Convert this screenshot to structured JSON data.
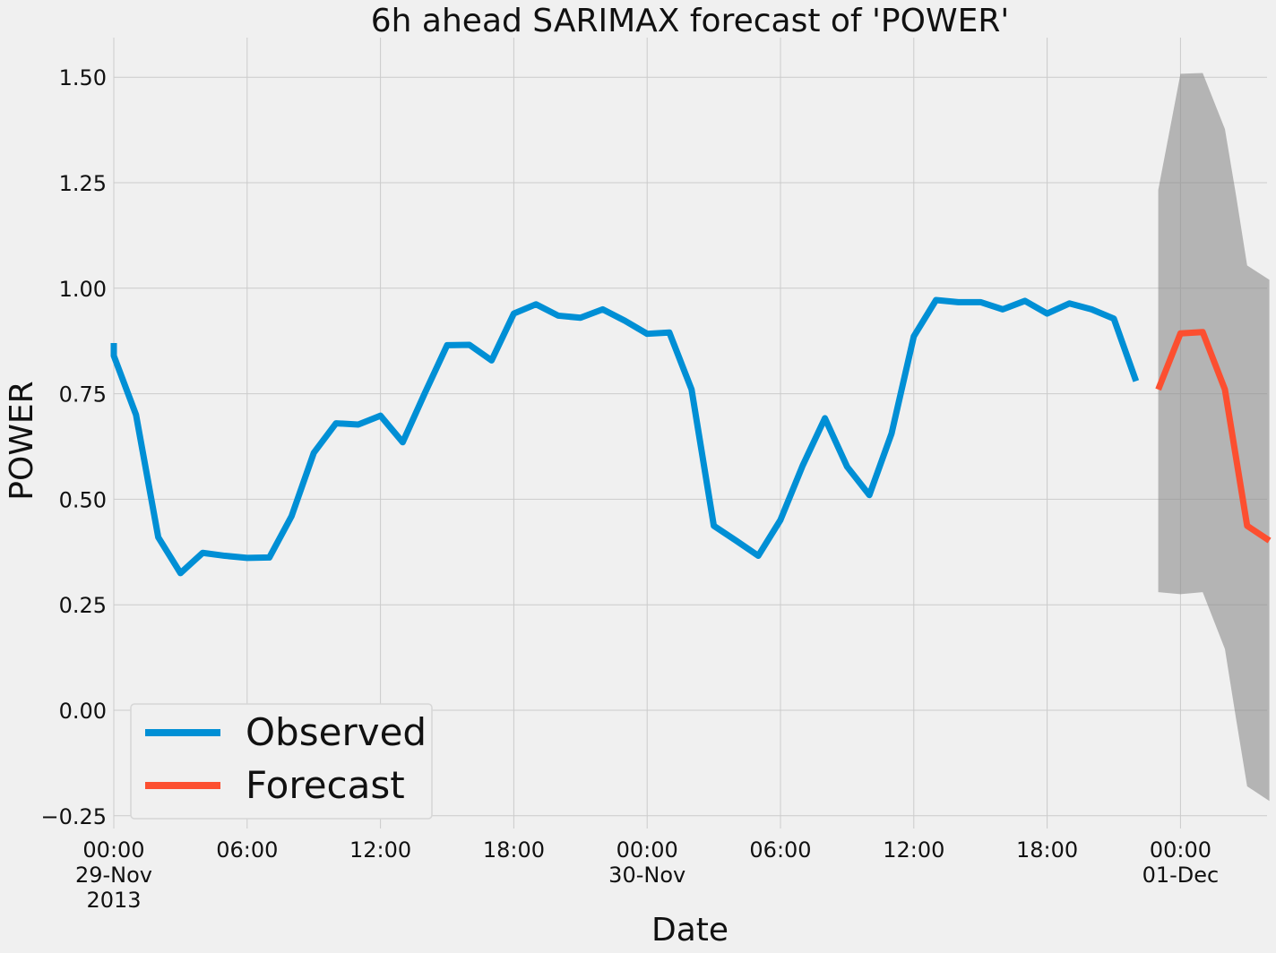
{
  "chart_data": {
    "type": "line",
    "title": "6h ahead SARIMAX forecast of 'POWER'",
    "xlabel": "Date",
    "ylabel": "POWER",
    "x_unit": "hour",
    "x_start": "2013-11-29 00:00",
    "xlim": [
      "2013-11-29 00:00",
      "2013-12-01 04:00"
    ],
    "ylim": [
      -0.28,
      1.6
    ],
    "yticks": [
      -0.25,
      0.0,
      0.25,
      0.5,
      0.75,
      1.0,
      1.25,
      1.5
    ],
    "ytick_labels": [
      "−0.25",
      "0.00",
      "0.25",
      "0.50",
      "0.75",
      "1.00",
      "1.25",
      "1.50"
    ],
    "xticks": [
      {
        "x": "2013-11-29 00:00",
        "lines": [
          "00:00",
          "29-Nov",
          "2013"
        ]
      },
      {
        "x": "2013-11-29 06:00",
        "lines": [
          "06:00"
        ]
      },
      {
        "x": "2013-11-29 12:00",
        "lines": [
          "12:00"
        ]
      },
      {
        "x": "2013-11-29 18:00",
        "lines": [
          "18:00"
        ]
      },
      {
        "x": "2013-11-30 00:00",
        "lines": [
          "00:00",
          "30-Nov"
        ]
      },
      {
        "x": "2013-11-30 06:00",
        "lines": [
          "06:00"
        ]
      },
      {
        "x": "2013-11-30 12:00",
        "lines": [
          "12:00"
        ]
      },
      {
        "x": "2013-11-30 18:00",
        "lines": [
          "18:00"
        ]
      },
      {
        "x": "2013-12-01 00:00",
        "lines": [
          "00:00",
          "01-Dec"
        ]
      }
    ],
    "grid": true,
    "legend": {
      "position": "lower-left"
    },
    "series": [
      {
        "name": "Observed",
        "color": "#008fd5",
        "x": [
          "2013-11-29 00:00",
          "2013-11-29 00:00",
          "2013-11-29 01:00",
          "2013-11-29 02:00",
          "2013-11-29 03:00",
          "2013-11-29 04:00",
          "2013-11-29 05:00",
          "2013-11-29 06:00",
          "2013-11-29 07:00",
          "2013-11-29 08:00",
          "2013-11-29 09:00",
          "2013-11-29 10:00",
          "2013-11-29 11:00",
          "2013-11-29 12:00",
          "2013-11-29 13:00",
          "2013-11-29 14:00",
          "2013-11-29 15:00",
          "2013-11-29 16:00",
          "2013-11-29 17:00",
          "2013-11-29 18:00",
          "2013-11-29 19:00",
          "2013-11-29 20:00",
          "2013-11-29 21:00",
          "2013-11-29 22:00",
          "2013-11-29 23:00",
          "2013-11-30 00:00",
          "2013-11-30 01:00",
          "2013-11-30 02:00",
          "2013-11-30 03:00",
          "2013-11-30 04:00",
          "2013-11-30 05:00",
          "2013-11-30 06:00",
          "2013-11-30 07:00",
          "2013-11-30 08:00",
          "2013-11-30 09:00",
          "2013-11-30 10:00",
          "2013-11-30 11:00",
          "2013-11-30 12:00",
          "2013-11-30 13:00",
          "2013-11-30 14:00",
          "2013-11-30 15:00",
          "2013-11-30 16:00",
          "2013-11-30 17:00",
          "2013-11-30 18:00",
          "2013-11-30 19:00",
          "2013-11-30 20:00",
          "2013-11-30 21:00",
          "2013-11-30 22:00"
        ],
        "values": [
          0.87,
          0.84,
          0.7,
          0.41,
          0.325,
          0.373,
          0.366,
          0.361,
          0.362,
          0.46,
          0.61,
          0.68,
          0.677,
          0.698,
          0.635,
          0.752,
          0.865,
          0.866,
          0.829,
          0.94,
          0.962,
          0.935,
          0.93,
          0.95,
          0.923,
          0.892,
          0.895,
          0.76,
          0.437,
          0.402,
          0.366,
          0.451,
          0.58,
          0.692,
          0.577,
          0.51,
          0.656,
          0.886,
          0.972,
          0.967,
          0.967,
          0.95,
          0.97,
          0.94,
          0.964,
          0.95,
          0.928,
          0.78
        ]
      },
      {
        "name": "Forecast",
        "color": "#fc4f30",
        "x": [
          "2013-11-30 23:00",
          "2013-12-01 00:00",
          "2013-12-01 01:00",
          "2013-12-01 02:00",
          "2013-12-01 03:00",
          "2013-12-01 04:00"
        ],
        "values": [
          0.76,
          0.893,
          0.896,
          0.76,
          0.437,
          0.402
        ]
      }
    ],
    "confidence_band": {
      "color": "#8c8c8c",
      "x": [
        "2013-11-30 23:00",
        "2013-12-01 00:00",
        "2013-12-01 01:00",
        "2013-12-01 02:00",
        "2013-12-01 02:30",
        "2013-12-01 03:00",
        "2013-12-01 04:00"
      ],
      "lower": [
        0.28,
        0.275,
        0.28,
        0.145,
        -0.02,
        -0.18,
        -0.215
      ],
      "upper": [
        1.233,
        1.508,
        1.51,
        1.377,
        1.22,
        1.054,
        1.02
      ]
    }
  }
}
